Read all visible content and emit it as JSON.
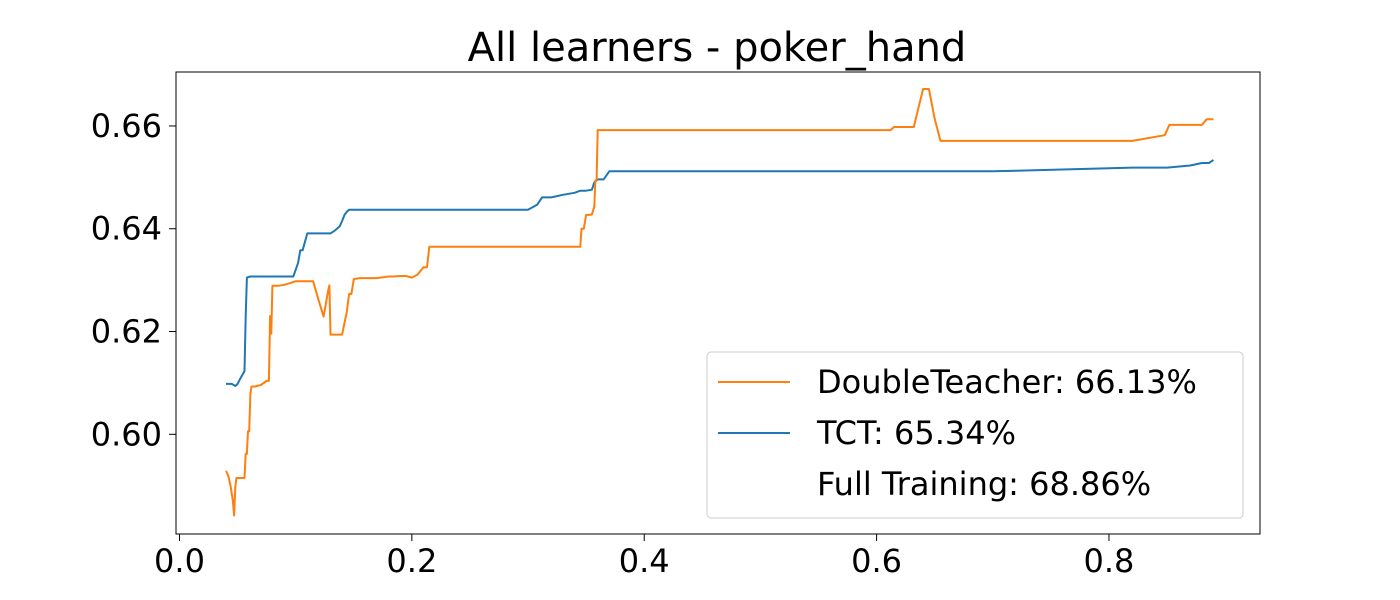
{
  "chart_data": {
    "type": "line",
    "title": "All learners - poker_hand",
    "xlabel": "",
    "ylabel": "",
    "xlim": [
      -0.003,
      0.93
    ],
    "ylim": [
      0.5806,
      0.6705
    ],
    "x_ticks": [
      0.0,
      0.2,
      0.4,
      0.6,
      0.8
    ],
    "x_tick_labels": [
      "0.0",
      "0.2",
      "0.4",
      "0.6",
      "0.8"
    ],
    "y_ticks": [
      0.6,
      0.62,
      0.64,
      0.66
    ],
    "y_tick_labels": [
      "0.60",
      "0.62",
      "0.64",
      "0.66"
    ],
    "grid": false,
    "legend_position": "lower-right",
    "legend": [
      {
        "label": "DoubleTeacher: 66.13%",
        "color": "#ff7f0e",
        "has_line": true
      },
      {
        "label": "TCT: 65.34%",
        "color": "#1f77b4",
        "has_line": true
      },
      {
        "label": "Full Training: 68.86%",
        "color": "#ffffff",
        "has_line": false
      }
    ],
    "series": [
      {
        "color": "#1f77b4",
        "x": [
          0.04,
          0.045,
          0.048,
          0.05,
          0.052,
          0.056,
          0.057,
          0.058,
          0.061,
          0.07,
          0.08,
          0.09,
          0.098,
          0.102,
          0.104,
          0.106,
          0.11,
          0.12,
          0.13,
          0.134,
          0.138,
          0.14,
          0.142,
          0.144,
          0.146,
          0.15,
          0.2,
          0.25,
          0.3,
          0.308,
          0.312,
          0.32,
          0.33,
          0.34,
          0.345,
          0.35,
          0.355,
          0.357,
          0.36,
          0.365,
          0.37,
          0.4,
          0.5,
          0.6,
          0.7,
          0.72,
          0.82,
          0.85,
          0.87,
          0.88,
          0.886,
          0.89
        ],
        "y": [
          0.6098,
          0.6098,
          0.6094,
          0.6098,
          0.6107,
          0.6123,
          0.623,
          0.6305,
          0.6307,
          0.6307,
          0.6307,
          0.6307,
          0.6307,
          0.6333,
          0.6358,
          0.6358,
          0.6391,
          0.6391,
          0.6391,
          0.6397,
          0.6405,
          0.6415,
          0.6427,
          0.6433,
          0.6437,
          0.6437,
          0.6437,
          0.6437,
          0.6437,
          0.6447,
          0.6461,
          0.6461,
          0.6466,
          0.647,
          0.6474,
          0.6474,
          0.6476,
          0.649,
          0.6496,
          0.6496,
          0.6512,
          0.6512,
          0.6512,
          0.6512,
          0.6512,
          0.6513,
          0.6519,
          0.6519,
          0.6523,
          0.6528,
          0.6528,
          0.6534
        ]
      },
      {
        "color": "#ff7f0e",
        "x": [
          0.04,
          0.042,
          0.044,
          0.046,
          0.047,
          0.048,
          0.049,
          0.052,
          0.056,
          0.057,
          0.058,
          0.059,
          0.06,
          0.061,
          0.062,
          0.065,
          0.07,
          0.075,
          0.077,
          0.078,
          0.079,
          0.08,
          0.081,
          0.085,
          0.09,
          0.095,
          0.1,
          0.105,
          0.11,
          0.115,
          0.12,
          0.124,
          0.128,
          0.129,
          0.13,
          0.133,
          0.136,
          0.14,
          0.142,
          0.144,
          0.146,
          0.148,
          0.15,
          0.155,
          0.16,
          0.17,
          0.18,
          0.185,
          0.19,
          0.195,
          0.2,
          0.205,
          0.21,
          0.213,
          0.215,
          0.22,
          0.3,
          0.34,
          0.345,
          0.346,
          0.348,
          0.35,
          0.353,
          0.355,
          0.357,
          0.358,
          0.359,
          0.36,
          0.4,
          0.5,
          0.6,
          0.612,
          0.615,
          0.625,
          0.632,
          0.636,
          0.64,
          0.645,
          0.65,
          0.655,
          0.66,
          0.7,
          0.8,
          0.82,
          0.848,
          0.852,
          0.86,
          0.87,
          0.88,
          0.884,
          0.89
        ],
        "y": [
          0.5929,
          0.5919,
          0.5899,
          0.587,
          0.5842,
          0.5897,
          0.5915,
          0.5915,
          0.5915,
          0.5962,
          0.5962,
          0.6006,
          0.6006,
          0.608,
          0.6093,
          0.6093,
          0.6096,
          0.6104,
          0.6104,
          0.623,
          0.6196,
          0.6289,
          0.6289,
          0.6289,
          0.6291,
          0.6294,
          0.6298,
          0.6298,
          0.6298,
          0.6298,
          0.6259,
          0.6229,
          0.628,
          0.629,
          0.6194,
          0.6194,
          0.6194,
          0.6194,
          0.6217,
          0.6238,
          0.6273,
          0.6273,
          0.6302,
          0.6304,
          0.6304,
          0.6304,
          0.6307,
          0.6307,
          0.6308,
          0.6308,
          0.6305,
          0.6311,
          0.6325,
          0.6325,
          0.6365,
          0.6365,
          0.6365,
          0.6365,
          0.6365,
          0.64,
          0.64,
          0.6427,
          0.6427,
          0.6428,
          0.6443,
          0.6494,
          0.6494,
          0.6592,
          0.6592,
          0.6592,
          0.6592,
          0.6592,
          0.6598,
          0.6598,
          0.6598,
          0.6635,
          0.6672,
          0.6672,
          0.6614,
          0.6571,
          0.6571,
          0.6571,
          0.6571,
          0.6571,
          0.6582,
          0.6602,
          0.6602,
          0.6602,
          0.6602,
          0.6613,
          0.6613
        ]
      }
    ]
  }
}
